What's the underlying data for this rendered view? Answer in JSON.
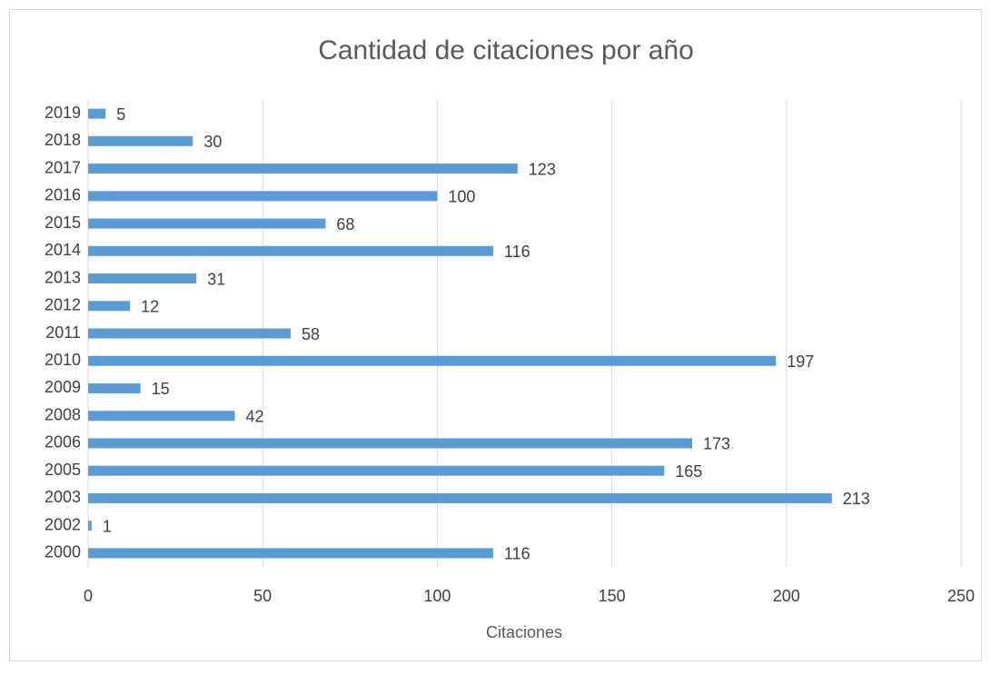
{
  "chart_data": {
    "type": "bar",
    "orientation": "horizontal",
    "title": "Cantidad de citaciones por año",
    "x_label": "Citaciones",
    "categories": [
      "2019",
      "2018",
      "2017",
      "2016",
      "2015",
      "2014",
      "2013",
      "2012",
      "2011",
      "2010",
      "2009",
      "2008",
      "2006",
      "2005",
      "2003",
      "2002",
      "2000"
    ],
    "values": [
      5,
      30,
      123,
      100,
      68,
      116,
      31,
      12,
      58,
      197,
      15,
      42,
      173,
      165,
      213,
      1,
      116
    ],
    "color": "#5b9bd5",
    "xlim": [
      0,
      250
    ],
    "xticks": [
      0,
      50,
      100,
      150,
      200,
      250
    ],
    "grid": true
  }
}
